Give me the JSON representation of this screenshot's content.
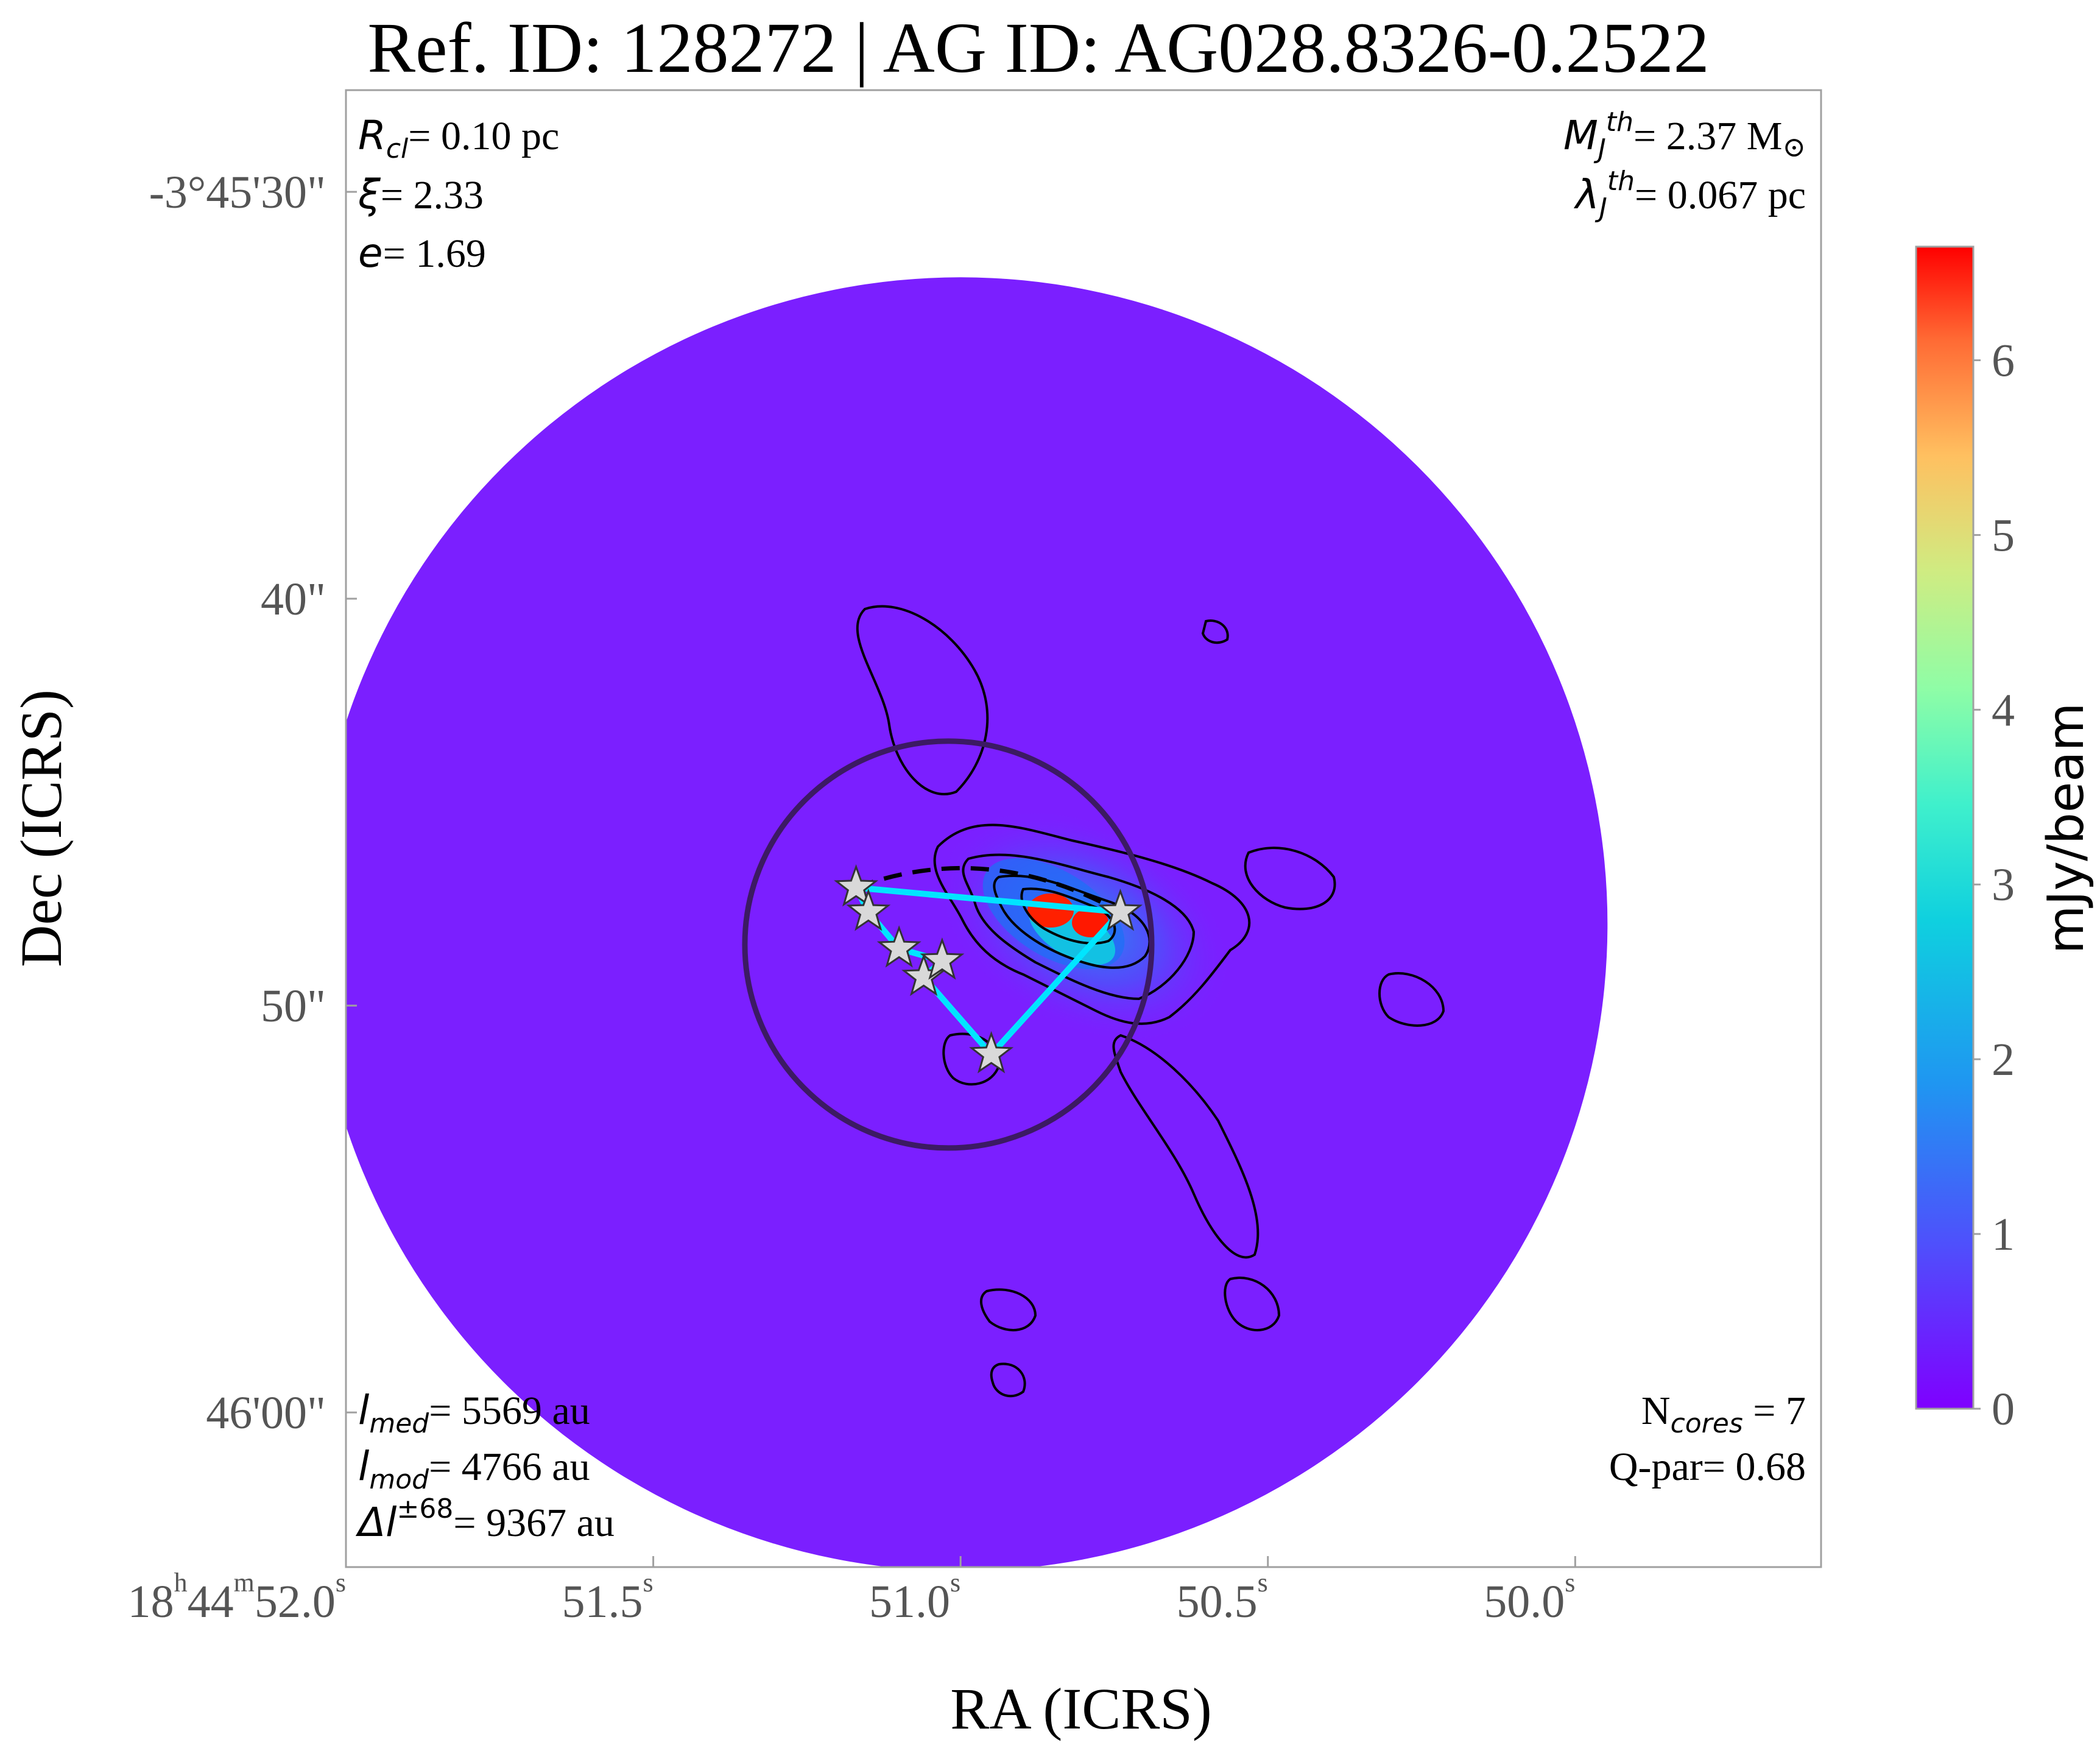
{
  "chart_data": {
    "type": "heatmap",
    "title": "Ref. ID: 128272 | AG ID: AG028.8326-0.2522",
    "xlabel": "RA (ICRS)",
    "ylabel": "Dec (ICRS)",
    "x_ticks": [
      {
        "value": 52.0,
        "h": "18",
        "m": "44",
        "s": "52.0"
      },
      {
        "value": 51.5,
        "h": "",
        "m": "",
        "s": "51.5"
      },
      {
        "value": 51.0,
        "h": "",
        "m": "",
        "s": "51.0"
      },
      {
        "value": 50.5,
        "h": "",
        "m": "",
        "s": "50.5"
      },
      {
        "value": 50.0,
        "h": "",
        "m": "",
        "s": "50.0"
      }
    ],
    "y_ticks": [
      {
        "value": 30,
        "label": "-3°45'30\""
      },
      {
        "value": 40,
        "label": "40\""
      },
      {
        "value": 50,
        "label": "50\""
      },
      {
        "value": 60,
        "label": "46'00\""
      }
    ],
    "xlim_ra_seconds": [
      52.0,
      49.6
    ],
    "ylim_dec_arcsec_below_45min": [
      27.5,
      63.8
    ],
    "grid": false,
    "colorbar": {
      "label": "mJy/beam",
      "min": 0,
      "max": 6.65,
      "ticks": [
        "0",
        "1",
        "2",
        "3",
        "4",
        "5",
        "6"
      ],
      "colormap": "rainbow"
    },
    "annotations_left_top": [
      {
        "sym": "R",
        "sub": "cl",
        "value": "= 0.10 pc"
      },
      {
        "sym": "ξ",
        "sub": "",
        "value": "= 2.33"
      },
      {
        "sym": "e",
        "sub": "",
        "value": "= 1.69"
      }
    ],
    "annotations_right_top": [
      {
        "sym": "M",
        "sub": "J",
        "sup": "th",
        "value": "= 2.37 M",
        "unit_symbol": "⊙"
      },
      {
        "sym": "λ",
        "sub": "J",
        "sup": "th",
        "value": "= 0.067 pc"
      }
    ],
    "annotations_left_bottom": [
      {
        "sym": "l",
        "sub": "med",
        "value": "= 5569 au"
      },
      {
        "sym": "l",
        "sub": "mod",
        "value": "= 4766 au"
      },
      {
        "sym": "Δl",
        "sup": "±68",
        "value": "= 9367 au"
      }
    ],
    "annotations_right_bottom": [
      {
        "text": "N",
        "sub": "cores",
        "value": " = 7"
      },
      {
        "text": "Q-par",
        "value": "= 0.68"
      }
    ],
    "cores": [
      {
        "ra": 51.17,
        "dec": 47.1
      },
      {
        "ra": 51.15,
        "dec": 47.7
      },
      {
        "ra": 51.1,
        "dec": 48.6
      },
      {
        "ra": 51.06,
        "dec": 49.3
      },
      {
        "ra": 51.03,
        "dec": 48.9
      },
      {
        "ra": 50.95,
        "dec": 51.2
      },
      {
        "ra": 50.74,
        "dec": 47.7
      }
    ],
    "mst_edges": [
      [
        0,
        1
      ],
      [
        1,
        2
      ],
      [
        2,
        4
      ],
      [
        4,
        3
      ],
      [
        3,
        5
      ],
      [
        5,
        6
      ],
      [
        0,
        6
      ]
    ],
    "clump_circle": {
      "ra": 51.02,
      "dec": 48.5,
      "radius_arcsec": 5.0
    },
    "primary_beam": {
      "ra": 51.0,
      "dec": 48.0,
      "radius_arcsec": 15.9
    },
    "colors": {
      "background_map": "#7b1fff",
      "mst_line": "#00e5ff",
      "clump_circle": "#3c1a63",
      "contour": "#000000",
      "star_fill": "#d9d9d9"
    }
  }
}
